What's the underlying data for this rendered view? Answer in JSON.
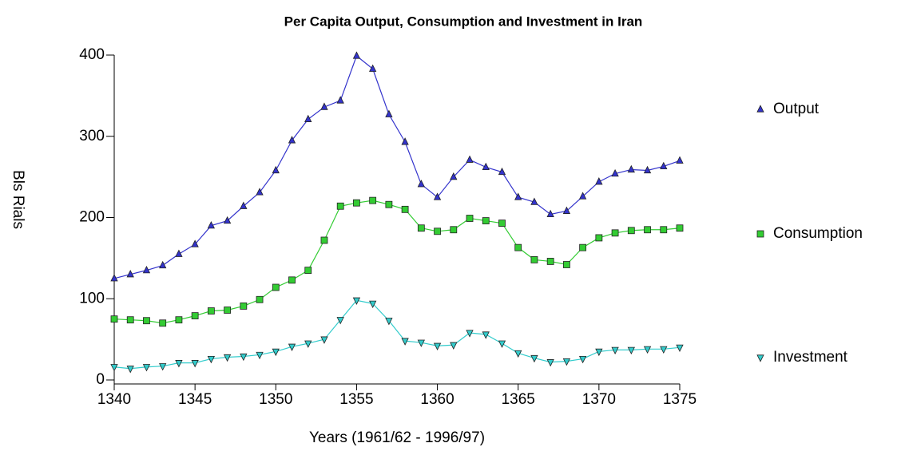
{
  "chart_data": {
    "type": "line",
    "title": "Per Capita Output, Consumption and Investment in Iran",
    "xlabel": "Years (1961/62 - 1996/97)",
    "ylabel": "Bls Rials",
    "x": [
      1340,
      1341,
      1342,
      1343,
      1344,
      1345,
      1346,
      1347,
      1348,
      1349,
      1350,
      1351,
      1352,
      1353,
      1354,
      1355,
      1356,
      1357,
      1358,
      1359,
      1360,
      1361,
      1362,
      1363,
      1364,
      1365,
      1366,
      1367,
      1368,
      1369,
      1370,
      1371,
      1372,
      1373,
      1374,
      1375
    ],
    "series": [
      {
        "name": "Output",
        "color": "#3333cc",
        "marker": "triangle-up",
        "values": [
          125,
          130,
          135,
          141,
          155,
          167,
          190,
          196,
          214,
          231,
          258,
          295,
          321,
          336,
          344,
          399,
          383,
          327,
          293,
          241,
          225,
          250,
          271,
          262,
          256,
          225,
          219,
          204,
          208,
          226,
          244,
          254,
          259,
          258,
          263,
          270
        ]
      },
      {
        "name": "Consumption",
        "color": "#33cc33",
        "marker": "square",
        "values": [
          75,
          74,
          73,
          70,
          74,
          79,
          85,
          86,
          91,
          99,
          114,
          123,
          135,
          172,
          214,
          218,
          221,
          216,
          210,
          187,
          183,
          185,
          199,
          196,
          193,
          163,
          148,
          146,
          142,
          163,
          175,
          181,
          184,
          185,
          185,
          187
        ]
      },
      {
        "name": "Investment",
        "color": "#33cccc",
        "marker": "triangle-down",
        "values": [
          16,
          14,
          16,
          17,
          21,
          21,
          26,
          28,
          29,
          31,
          35,
          41,
          45,
          50,
          74,
          98,
          94,
          73,
          48,
          46,
          42,
          43,
          58,
          56,
          45,
          33,
          27,
          22,
          23,
          26,
          35,
          37,
          37,
          38,
          38,
          40
        ]
      }
    ],
    "xlim": [
      1340,
      1375
    ],
    "xticks": [
      1340,
      1345,
      1350,
      1355,
      1360,
      1365,
      1370,
      1375
    ],
    "ylim": [
      0,
      400
    ],
    "yticks": [
      0,
      100,
      200,
      300,
      400
    ],
    "grid": false,
    "legend": "right"
  }
}
